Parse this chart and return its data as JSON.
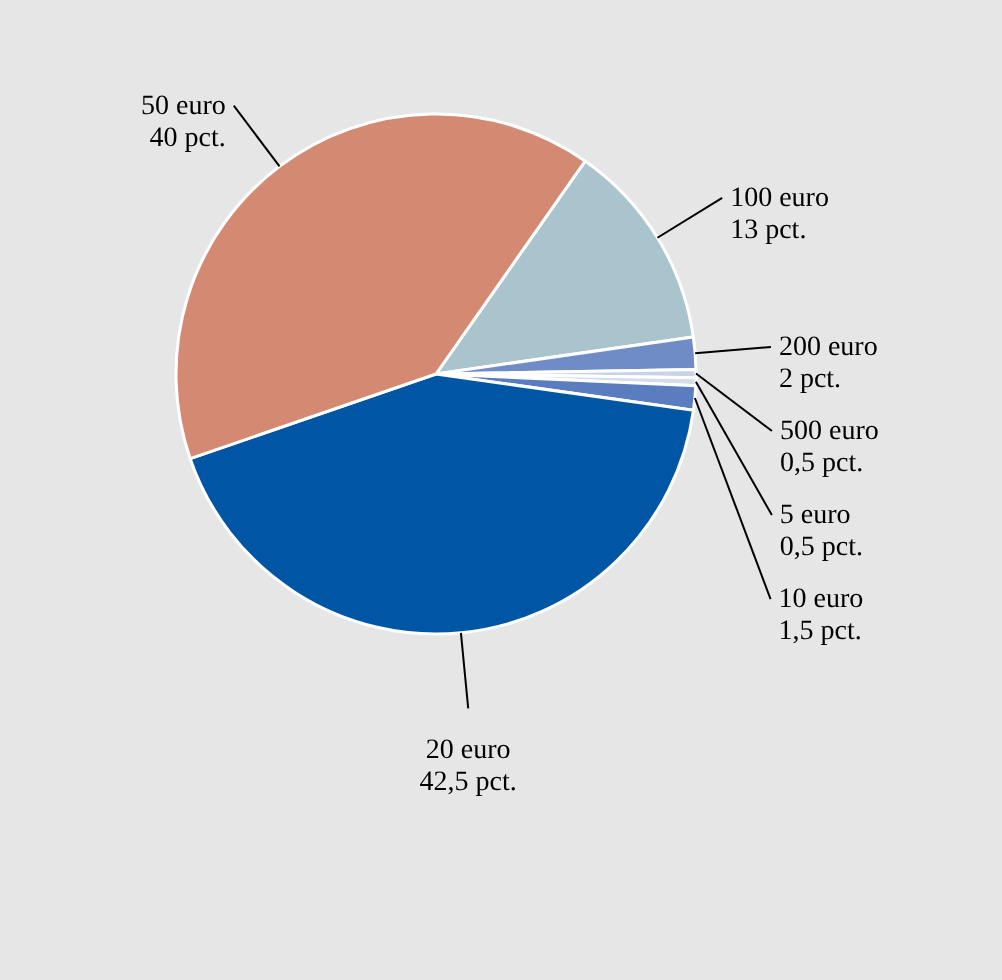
{
  "chart_data": {
    "type": "pie",
    "categories": [
      "100 euro",
      "200 euro",
      "500 euro",
      "5 euro",
      "10 euro",
      "20 euro",
      "50 euro"
    ],
    "values": [
      13,
      2,
      0.5,
      0.5,
      1.5,
      42.5,
      40
    ],
    "value_labels": [
      "13 pct.",
      "2 pct.",
      "0,5 pct.",
      "0,5 pct.",
      "1,5 pct.",
      "42,5 pct.",
      "40 pct."
    ],
    "colors": [
      "#a9c4cc",
      "#6f8cc6",
      "#c9d3e6",
      "#d5dcea",
      "#5a7dc0",
      "#0055a4",
      "#d48a72"
    ]
  }
}
